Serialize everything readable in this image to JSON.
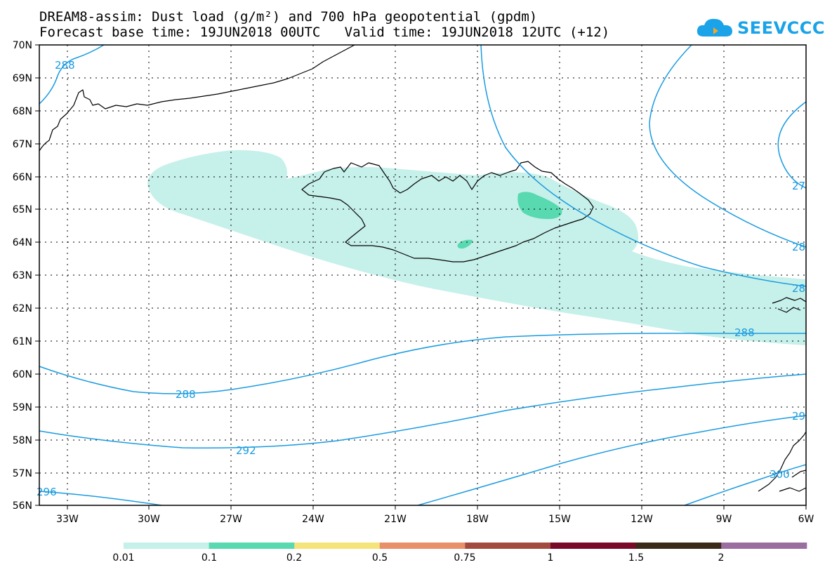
{
  "title": {
    "line1": "DREAM8-assim: Dust load (g/m²) and 700 hPa geopotential (gpdm)",
    "line2": "Forecast base time: 19JUN2018 00UTC   Valid time: 19JUN2018 12UTC (+12)"
  },
  "logo": {
    "text": "SEEVCCC",
    "icon": "cloud-icon",
    "color": "#1aa3e8"
  },
  "map": {
    "lat_labels": [
      "70N",
      "69N",
      "68N",
      "67N",
      "66N",
      "65N",
      "64N",
      "63N",
      "62N",
      "61N",
      "60N",
      "59N",
      "58N",
      "57N",
      "56N"
    ],
    "lon_labels": [
      "33W",
      "30W",
      "27W",
      "24W",
      "21W",
      "18W",
      "15W",
      "12W",
      "9W",
      "6W"
    ],
    "grid": true,
    "contour_color": "#1a9be0",
    "contour_labels": [
      "288",
      "288",
      "288",
      "292",
      "296",
      "27",
      "28",
      "28",
      "29",
      "300"
    ]
  },
  "legend": {
    "thresholds": [
      "0.01",
      "0.1",
      "0.2",
      "0.5",
      "0.75",
      "1",
      "1.5",
      "2"
    ],
    "colors": [
      "#c6f0ea",
      "#58d9b0",
      "#f5e47a",
      "#e8906a",
      "#a34a3f",
      "#7a0a2a",
      "#3a2a1a",
      "#9a6fa0"
    ]
  }
}
